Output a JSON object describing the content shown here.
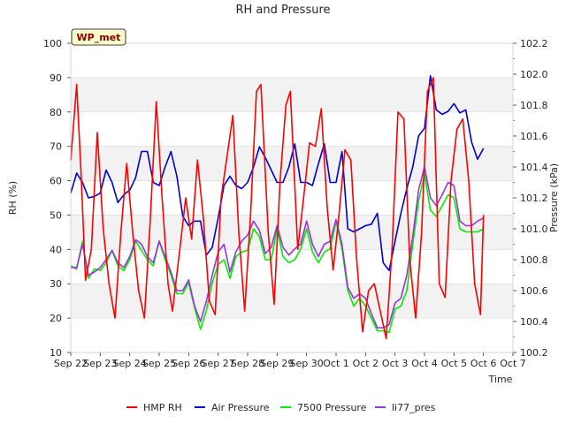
{
  "chart_data": {
    "type": "line",
    "title": "RH and Pressure",
    "badge": "WP_met",
    "xlabel": "Time",
    "ylabel_left": "RH (%)",
    "ylabel_right": "Pressure (kPa)",
    "x_ticks": [
      "Sep 22",
      "Sep 23",
      "Sep 24",
      "Sep 25",
      "Sep 26",
      "Sep 27",
      "Sep 28",
      "Sep 29",
      "Sep 30",
      "Oct 1",
      "Oct 2",
      "Oct 3",
      "Oct 4",
      "Oct 5",
      "Oct 6",
      "Oct 7"
    ],
    "xlim": [
      0,
      15
    ],
    "ylim_left": [
      10,
      100
    ],
    "ylim_right": [
      100.2,
      102.2
    ],
    "y_ticks_left": [
      10,
      20,
      30,
      40,
      50,
      60,
      70,
      80,
      90,
      100
    ],
    "y_ticks_right": [
      "100.2",
      "100.4",
      "100.6",
      "100.8",
      "101.0",
      "101.2",
      "101.4",
      "101.6",
      "101.8",
      "102.0",
      "102.2"
    ],
    "grid": true,
    "legend_position": "bottom",
    "series": [
      {
        "name": "HMP RH",
        "axis": "left",
        "color": "#ff0000",
        "x": [
          0.0,
          0.2,
          0.35,
          0.5,
          0.7,
          0.9,
          1.1,
          1.3,
          1.5,
          1.7,
          1.9,
          2.1,
          2.3,
          2.5,
          2.7,
          2.9,
          3.1,
          3.3,
          3.45,
          3.7,
          3.9,
          4.1,
          4.3,
          4.5,
          4.7,
          4.9,
          5.1,
          5.3,
          5.5,
          5.7,
          5.9,
          6.1,
          6.3,
          6.45,
          6.7,
          6.9,
          7.1,
          7.3,
          7.45,
          7.7,
          7.9,
          8.1,
          8.3,
          8.5,
          8.7,
          8.9,
          9.1,
          9.3,
          9.5,
          9.7,
          9.9,
          10.1,
          10.3,
          10.5,
          10.7,
          10.9,
          11.1,
          11.3,
          11.5,
          11.7,
          11.9,
          12.1,
          12.3,
          12.5,
          12.7,
          12.9,
          13.1,
          13.3,
          13.5,
          13.7,
          13.9,
          14.0
        ],
        "y": [
          66,
          88,
          62,
          31,
          40,
          74,
          46,
          30,
          20,
          45,
          65,
          45,
          28,
          20,
          49,
          83,
          55,
          30,
          22,
          40,
          55,
          43,
          66,
          49,
          25,
          21,
          55,
          67,
          79,
          45,
          22,
          50,
          86,
          88,
          45,
          24,
          60,
          82,
          86,
          40,
          55,
          71,
          70,
          81,
          52,
          34,
          50,
          69,
          66,
          37,
          16,
          28,
          30,
          22,
          14,
          40,
          80,
          78,
          37,
          20,
          45,
          86,
          90,
          30,
          26,
          60,
          75,
          78,
          60,
          30,
          21,
          50
        ]
      },
      {
        "name": "Air Pressure",
        "axis": "right",
        "color": "#0000cc",
        "x": [
          0.0,
          0.2,
          0.4,
          0.6,
          0.8,
          1.0,
          1.2,
          1.4,
          1.6,
          1.8,
          2.0,
          2.2,
          2.4,
          2.6,
          2.8,
          3.0,
          3.2,
          3.4,
          3.6,
          3.8,
          4.0,
          4.2,
          4.4,
          4.6,
          4.8,
          5.0,
          5.2,
          5.4,
          5.6,
          5.8,
          6.0,
          6.2,
          6.4,
          6.6,
          6.8,
          7.0,
          7.2,
          7.4,
          7.6,
          7.8,
          8.0,
          8.2,
          8.4,
          8.6,
          8.8,
          9.0,
          9.2,
          9.4,
          9.6,
          9.8,
          10.0,
          10.2,
          10.4,
          10.6,
          10.8,
          11.0,
          11.2,
          11.4,
          11.6,
          11.8,
          12.0,
          12.2,
          12.4,
          12.6,
          12.8,
          13.0,
          13.2,
          13.4,
          13.6,
          13.8,
          14.0
        ],
        "y": [
          101.23,
          101.36,
          101.3,
          101.2,
          101.21,
          101.23,
          101.38,
          101.3,
          101.17,
          101.22,
          101.25,
          101.33,
          101.5,
          101.5,
          101.3,
          101.28,
          101.4,
          101.5,
          101.34,
          101.08,
          101.02,
          101.05,
          101.05,
          100.83,
          100.88,
          101.07,
          101.28,
          101.34,
          101.28,
          101.26,
          101.3,
          101.4,
          101.53,
          101.46,
          101.38,
          101.3,
          101.3,
          101.4,
          101.55,
          101.3,
          101.3,
          101.28,
          101.42,
          101.55,
          101.3,
          101.3,
          101.5,
          101.0,
          100.98,
          101.0,
          101.02,
          101.03,
          101.1,
          100.78,
          100.73,
          100.92,
          101.1,
          101.26,
          101.4,
          101.6,
          101.65,
          101.99,
          101.77,
          101.74,
          101.76,
          101.81,
          101.75,
          101.77,
          101.56,
          101.45,
          101.52
        ]
      },
      {
        "name": "7500 Pressure",
        "axis": "right",
        "color": "#00ee00",
        "x": [
          0.0,
          0.2,
          0.4,
          0.6,
          0.8,
          1.0,
          1.2,
          1.4,
          1.6,
          1.8,
          2.0,
          2.2,
          2.4,
          2.6,
          2.8,
          3.0,
          3.2,
          3.4,
          3.6,
          3.8,
          4.0,
          4.2,
          4.4,
          4.6,
          4.8,
          5.0,
          5.2,
          5.4,
          5.6,
          5.8,
          6.0,
          6.2,
          6.4,
          6.6,
          6.8,
          7.0,
          7.2,
          7.4,
          7.6,
          7.8,
          8.0,
          8.2,
          8.4,
          8.6,
          8.8,
          9.0,
          9.2,
          9.4,
          9.6,
          9.8,
          10.0,
          10.2,
          10.4,
          10.6,
          10.8,
          11.0,
          11.2,
          11.4,
          11.6,
          11.8,
          12.0,
          12.2,
          12.4,
          12.6,
          12.8,
          13.0,
          13.2,
          13.4,
          13.6,
          13.8,
          14.0
        ],
        "y": [
          100.76,
          100.74,
          100.92,
          100.68,
          100.74,
          100.73,
          100.78,
          100.86,
          100.76,
          100.73,
          100.8,
          100.92,
          100.86,
          100.8,
          100.76,
          100.92,
          100.8,
          100.7,
          100.58,
          100.58,
          100.65,
          100.49,
          100.35,
          100.47,
          100.65,
          100.77,
          100.8,
          100.68,
          100.82,
          100.85,
          100.86,
          101.0,
          100.95,
          100.8,
          100.8,
          101.0,
          100.82,
          100.78,
          100.8,
          100.87,
          101.0,
          100.85,
          100.78,
          100.85,
          100.87,
          101.05,
          100.87,
          100.6,
          100.5,
          100.55,
          100.5,
          100.42,
          100.34,
          100.34,
          100.33,
          100.48,
          100.5,
          100.6,
          100.9,
          101.18,
          101.35,
          101.12,
          101.08,
          101.15,
          101.22,
          101.2,
          101.0,
          100.98,
          100.98,
          100.98,
          101.0
        ]
      },
      {
        "name": "li77_pres",
        "axis": "right",
        "color": "#9933dd",
        "x": [
          0.0,
          0.2,
          0.4,
          0.6,
          0.8,
          1.0,
          1.2,
          1.4,
          1.6,
          1.8,
          2.0,
          2.2,
          2.4,
          2.6,
          2.8,
          3.0,
          3.2,
          3.4,
          3.6,
          3.8,
          4.0,
          4.2,
          4.4,
          4.6,
          4.8,
          5.0,
          5.2,
          5.4,
          5.6,
          5.8,
          6.0,
          6.2,
          6.4,
          6.6,
          6.8,
          7.0,
          7.2,
          7.4,
          7.6,
          7.8,
          8.0,
          8.2,
          8.4,
          8.6,
          8.8,
          9.0,
          9.2,
          9.4,
          9.6,
          9.8,
          10.0,
          10.2,
          10.4,
          10.6,
          10.8,
          11.0,
          11.2,
          11.4,
          11.6,
          11.8,
          12.0,
          12.2,
          12.4,
          12.6,
          12.8,
          13.0,
          13.2,
          13.4,
          13.6,
          13.8,
          14.0
        ],
        "y": [
          100.75,
          100.75,
          100.9,
          100.7,
          100.72,
          100.75,
          100.8,
          100.86,
          100.78,
          100.75,
          100.82,
          100.93,
          100.9,
          100.82,
          100.78,
          100.92,
          100.82,
          100.72,
          100.6,
          100.6,
          100.67,
          100.5,
          100.4,
          100.53,
          100.7,
          100.85,
          100.9,
          100.72,
          100.85,
          100.92,
          100.96,
          101.05,
          100.99,
          100.84,
          100.88,
          101.02,
          100.88,
          100.83,
          100.87,
          100.9,
          101.05,
          100.9,
          100.82,
          100.9,
          100.92,
          101.06,
          100.9,
          100.62,
          100.55,
          100.58,
          100.55,
          100.45,
          100.36,
          100.36,
          100.38,
          100.52,
          100.55,
          100.7,
          100.95,
          101.25,
          101.4,
          101.2,
          101.15,
          101.22,
          101.3,
          101.28,
          101.05,
          101.02,
          101.02,
          101.05,
          101.07
        ]
      }
    ]
  }
}
